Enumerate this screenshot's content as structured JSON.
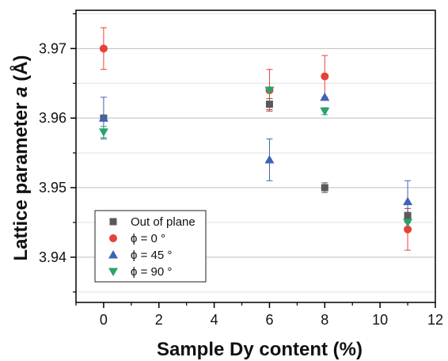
{
  "chart_data": {
    "type": "scatter",
    "title": "",
    "xlabel": "Sample Dy content (%)",
    "ylabel_prefix": "Lattice parameter ",
    "ylabel_italic": "a",
    "ylabel_suffix": " (Å)",
    "xlim": [
      -1,
      12
    ],
    "ylim": [
      3.9335,
      3.9755
    ],
    "xticks": [
      0,
      2,
      4,
      6,
      8,
      10,
      12
    ],
    "xtick_labels": [
      "0",
      "2",
      "4",
      "6",
      "8",
      "10",
      "12"
    ],
    "yticks": [
      3.94,
      3.95,
      3.96,
      3.97
    ],
    "ytick_labels": [
      "3.94",
      "3.95",
      "3.96",
      "3.97"
    ],
    "grid": "horizontal",
    "legend_position": "bottom-left",
    "series": [
      {
        "name": "Out of plane",
        "marker": "square",
        "color": "#5a5a5a",
        "points": [
          {
            "x": 0,
            "y": 3.96,
            "err": 0.0003
          },
          {
            "x": 6,
            "y": 3.962,
            "err": 0.0008
          },
          {
            "x": 8,
            "y": 3.95,
            "err": 0.0007
          },
          {
            "x": 11,
            "y": 3.946,
            "err": 0.001
          }
        ]
      },
      {
        "name": "ϕ = 0 °",
        "marker": "circle",
        "color": "#e8403a",
        "points": [
          {
            "x": 0,
            "y": 3.97,
            "err": 0.003
          },
          {
            "x": 6,
            "y": 3.964,
            "err": 0.003
          },
          {
            "x": 8,
            "y": 3.966,
            "err": 0.003
          },
          {
            "x": 11,
            "y": 3.944,
            "err": 0.003
          }
        ]
      },
      {
        "name": "ϕ = 45 °",
        "marker": "triangle-up",
        "color": "#3f63b5",
        "points": [
          {
            "x": 0,
            "y": 3.96,
            "err": 0.003
          },
          {
            "x": 6,
            "y": 3.954,
            "err": 0.003
          },
          {
            "x": 8,
            "y": 3.963,
            "err": 0.0
          },
          {
            "x": 11,
            "y": 3.948,
            "err": 0.003
          }
        ]
      },
      {
        "name": "ϕ = 90 °",
        "marker": "triangle-down",
        "color": "#2aa36a",
        "points": [
          {
            "x": 0,
            "y": 3.958,
            "err": 0.0008
          },
          {
            "x": 6,
            "y": 3.964,
            "err": 0.0
          },
          {
            "x": 8,
            "y": 3.961,
            "err": 0.0005
          },
          {
            "x": 11,
            "y": 3.945,
            "err": 0.0
          }
        ]
      }
    ]
  }
}
